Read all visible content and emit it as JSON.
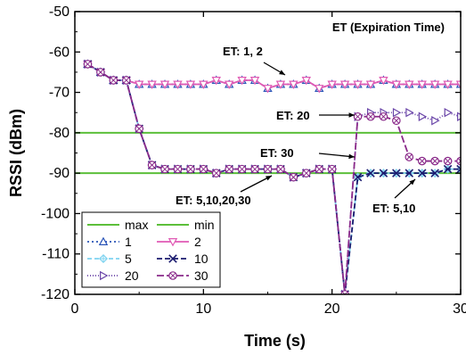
{
  "chart_data": {
    "type": "line",
    "title": "",
    "xlabel": "Time (s)",
    "ylabel": "RSSI (dBm)",
    "xlim": [
      0,
      30
    ],
    "ylim": [
      -120,
      -50
    ],
    "xticks": [
      0,
      10,
      20,
      30
    ],
    "yticks": [
      -120,
      -110,
      -100,
      -90,
      -80,
      -70,
      -60,
      -50
    ],
    "grid": false,
    "legend_position": "bottom-left",
    "box_label": "ET (Expiration Time)",
    "reference_lines": [
      {
        "name": "max",
        "y": -80,
        "color": "#5cbf3a"
      },
      {
        "name": "min",
        "y": -90,
        "color": "#5cbf3a"
      }
    ],
    "series": [
      {
        "name": "1",
        "color": "#2b55b8",
        "dash": "2,3",
        "marker": "triangle-up",
        "x": [
          1,
          2,
          3,
          4,
          5,
          6,
          7,
          8,
          9,
          10,
          11,
          12,
          13,
          14,
          15,
          16,
          17,
          18,
          19,
          20,
          21,
          22,
          23,
          24,
          25,
          26,
          27,
          28,
          29,
          30
        ],
        "y": [
          -63,
          -65,
          -67,
          -67,
          -68,
          -68,
          -68,
          -68,
          -68,
          -68,
          -67,
          -68,
          -67,
          -67,
          -69,
          -68,
          -68,
          -67,
          -69,
          -68,
          -68,
          -68,
          -68,
          -67,
          -68,
          -68,
          -68,
          -68,
          -68,
          -68
        ]
      },
      {
        "name": "2",
        "color": "#e05ab4",
        "dash": "",
        "marker": "triangle-down",
        "x": [
          1,
          2,
          3,
          4,
          5,
          6,
          7,
          8,
          9,
          10,
          11,
          12,
          13,
          14,
          15,
          16,
          17,
          18,
          19,
          20,
          21,
          22,
          23,
          24,
          25,
          26,
          27,
          28,
          29,
          30
        ],
        "y": [
          -63,
          -65,
          -67,
          -67,
          -68,
          -68,
          -68,
          -68,
          -68,
          -68,
          -67,
          -68,
          -67,
          -67,
          -69,
          -68,
          -68,
          -67,
          -69,
          -68,
          -68,
          -68,
          -68,
          -67,
          -68,
          -68,
          -68,
          -68,
          -68,
          -68
        ]
      },
      {
        "name": "5",
        "color": "#7fd3f0",
        "dash": "5,3",
        "marker": "diamond",
        "x": [
          1,
          2,
          3,
          4,
          5,
          6,
          7,
          8,
          9,
          10,
          11,
          12,
          13,
          14,
          15,
          16,
          17,
          18,
          19,
          20,
          21,
          22,
          23,
          24,
          25,
          26,
          27,
          28,
          29,
          30
        ],
        "y": [
          -63,
          -65,
          -67,
          -67,
          -79,
          -88,
          -89,
          -89,
          -89,
          -89,
          -90,
          -89,
          -89,
          -89,
          -89,
          -89,
          -91,
          -90,
          -89,
          -89,
          -120,
          -91,
          -90,
          -90,
          -90,
          -90,
          -90,
          -90,
          -89,
          -89
        ]
      },
      {
        "name": "10",
        "color": "#1a1a6e",
        "dash": "6,3",
        "marker": "x",
        "x": [
          1,
          2,
          3,
          4,
          5,
          6,
          7,
          8,
          9,
          10,
          11,
          12,
          13,
          14,
          15,
          16,
          17,
          18,
          19,
          20,
          21,
          22,
          23,
          24,
          25,
          26,
          27,
          28,
          29,
          30
        ],
        "y": [
          -63,
          -65,
          -67,
          -67,
          -79,
          -88,
          -89,
          -89,
          -89,
          -89,
          -90,
          -89,
          -89,
          -89,
          -89,
          -89,
          -91,
          -90,
          -89,
          -89,
          -120,
          -91,
          -90,
          -90,
          -90,
          -90,
          -90,
          -90,
          -89,
          -89
        ]
      },
      {
        "name": "20",
        "color": "#6a45a8",
        "dash": "1,2",
        "marker": "triangle-right",
        "x": [
          1,
          2,
          3,
          4,
          5,
          6,
          7,
          8,
          9,
          10,
          11,
          12,
          13,
          14,
          15,
          16,
          17,
          18,
          19,
          20,
          21,
          22,
          23,
          24,
          25,
          26,
          27,
          28,
          29,
          30
        ],
        "y": [
          -63,
          -65,
          -67,
          -67,
          -79,
          -88,
          -89,
          -89,
          -89,
          -89,
          -90,
          -89,
          -89,
          -89,
          -89,
          -89,
          -91,
          -90,
          -89,
          -89,
          -120,
          -76,
          -75,
          -75,
          -75,
          -75,
          -76,
          -77,
          -75,
          -76
        ]
      },
      {
        "name": "30",
        "color": "#8a2a8a",
        "dash": "8,3",
        "marker": "circle-cross",
        "x": [
          1,
          2,
          3,
          4,
          5,
          6,
          7,
          8,
          9,
          10,
          11,
          12,
          13,
          14,
          15,
          16,
          17,
          18,
          19,
          20,
          21,
          22,
          23,
          24,
          25,
          26,
          27,
          28,
          29,
          30
        ],
        "y": [
          -63,
          -65,
          -67,
          -67,
          -79,
          -88,
          -89,
          -89,
          -89,
          -89,
          -90,
          -89,
          -89,
          -89,
          -89,
          -89,
          -91,
          -90,
          -89,
          -89,
          -120,
          -76,
          -76,
          -76,
          -77,
          -86,
          -87,
          -87,
          -87,
          -87
        ]
      }
    ],
    "annotations": [
      {
        "text": "ET: 1, 2"
      },
      {
        "text": "ET: 20"
      },
      {
        "text": "ET: 30"
      },
      {
        "text": "ET: 5,10,20,30"
      },
      {
        "text": "ET: 5,10"
      }
    ]
  }
}
